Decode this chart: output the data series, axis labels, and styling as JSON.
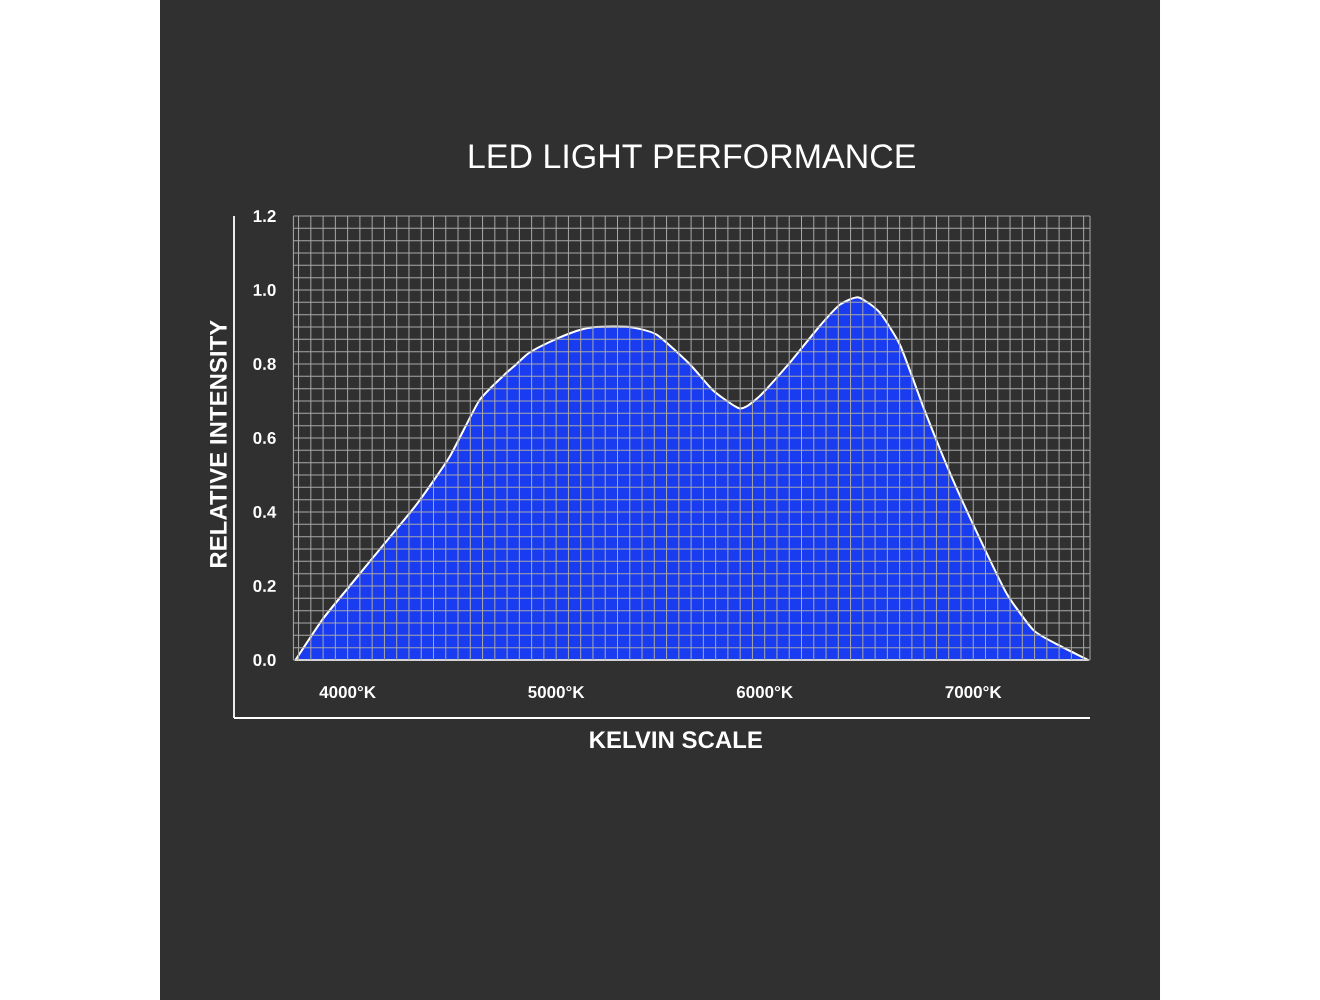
{
  "chart_data": {
    "type": "area",
    "title": "LED LIGHT PERFORMANCE",
    "xlabel": "KELVIN SCALE",
    "ylabel": "RELATIVE INTENSITY",
    "x": [
      3750,
      3880,
      4010,
      4170,
      4330,
      4490,
      4630,
      4750,
      4810,
      4870,
      4970,
      5100,
      5190,
      5350,
      5480,
      5640,
      5750,
      5880,
      5970,
      6130,
      6260,
      6360,
      6450,
      6550,
      6650,
      6770,
      6900,
      7030,
      7160,
      7290,
      7410,
      7550
    ],
    "values": [
      0,
      0.11,
      0.2,
      0.31,
      0.42,
      0.55,
      0.7,
      0.77,
      0.8,
      0.83,
      0.86,
      0.89,
      0.9,
      0.9,
      0.88,
      0.8,
      0.73,
      0.68,
      0.71,
      0.81,
      0.9,
      0.96,
      0.98,
      0.94,
      0.85,
      0.67,
      0.49,
      0.33,
      0.18,
      0.08,
      0.04,
      0
    ],
    "color": "#1a3cf0",
    "xlim": [
      3740,
      7560
    ],
    "ylim": [
      0,
      1.2
    ],
    "xticks": [
      {
        "value": 4000,
        "label": "4000°K"
      },
      {
        "value": 5000,
        "label": "5000°K"
      },
      {
        "value": 6000,
        "label": "6000°K"
      },
      {
        "value": 7000,
        "label": "7000°K"
      }
    ],
    "yticks": [
      {
        "value": 0,
        "label": "0.0"
      },
      0.2,
      0.4,
      0.6,
      0.8,
      {
        "value": 1,
        "label": "1.0"
      },
      1.2
    ],
    "grid": true
  }
}
